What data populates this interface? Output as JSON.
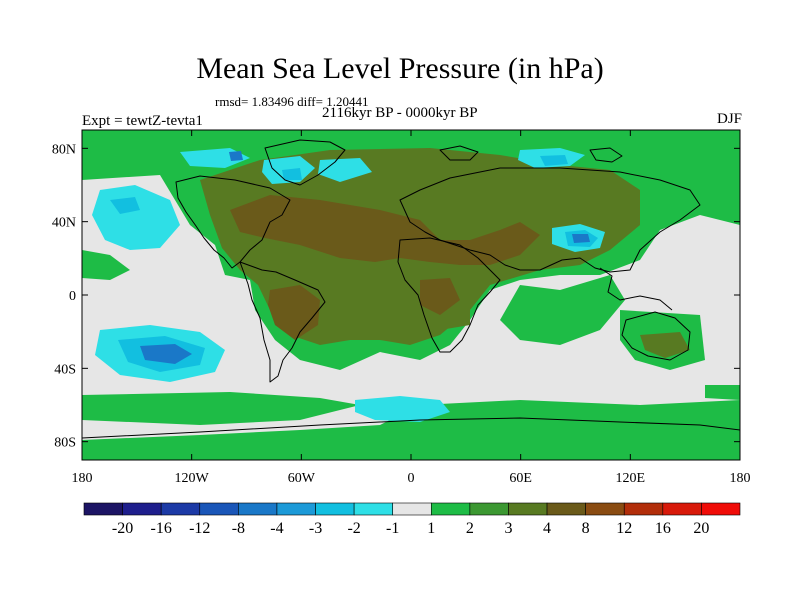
{
  "header": {
    "title": "Mean Sea Level Pressure (in hPa)",
    "stats": "rmsd= 1.83496 diff= 1.20441",
    "period": "2116kyr BP - 0000kyr BP",
    "experiment": "Expt = tewtZ-tevta1",
    "season": "DJF"
  },
  "axes": {
    "x_ticks": [
      "180",
      "120W",
      "60W",
      "0",
      "60E",
      "120E",
      "180"
    ],
    "y_ticks": [
      "80N",
      "40N",
      "0",
      "40S",
      "80S"
    ]
  },
  "colorbar": {
    "labels": [
      "-20",
      "-16",
      "-12",
      "-8",
      "-4",
      "-3",
      "-2",
      "-1",
      "1",
      "2",
      "3",
      "4",
      "8",
      "12",
      "16",
      "20"
    ],
    "colors": [
      "#1c1464",
      "#1e1e8c",
      "#1c3aa6",
      "#1a56b8",
      "#1a78c8",
      "#1c9ad8",
      "#12bfe0",
      "#2edfe6",
      "#e6e6e6",
      "#1ebc46",
      "#3c9832",
      "#587a22",
      "#6a5a1a",
      "#8a4c12",
      "#b22e0a",
      "#d81a0a",
      "#f00c08"
    ]
  },
  "colors": {
    "neutral": "#e6e6e6",
    "green": "#1ebc46",
    "olive": "#587a22",
    "brown": "#6a5a1a",
    "light_cyan": "#2edfe6",
    "cyan": "#12bfe0",
    "blue": "#1a78c8"
  }
}
